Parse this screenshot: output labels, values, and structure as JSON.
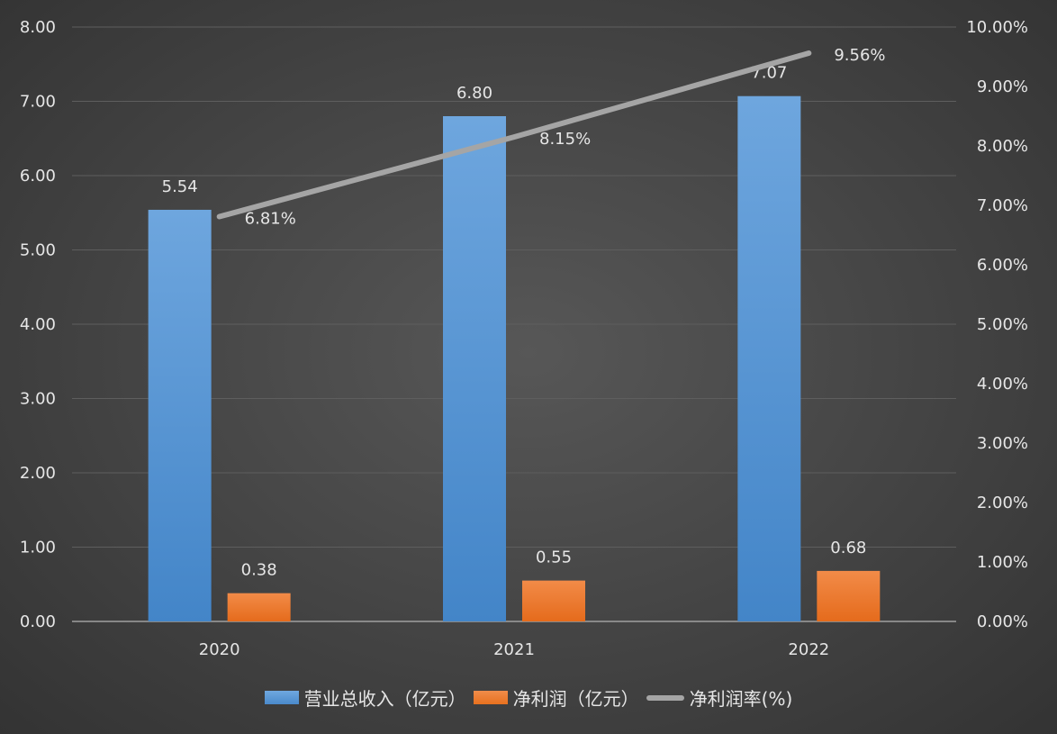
{
  "chart_data": {
    "type": "bar+line",
    "categories": [
      "2020",
      "2021",
      "2022"
    ],
    "series": [
      {
        "name": "营业总收入（亿元）",
        "type": "bar",
        "axis": "left",
        "values": [
          5.54,
          6.8,
          7.07
        ],
        "labels": [
          "5.54",
          "6.80",
          "7.07"
        ],
        "color": "#5b9bd5"
      },
      {
        "name": "净利润（亿元）",
        "type": "bar",
        "axis": "left",
        "values": [
          0.38,
          0.55,
          0.68
        ],
        "labels": [
          "0.38",
          "0.55",
          "0.68"
        ],
        "color": "#ed7d31"
      },
      {
        "name": "净利润率(%)",
        "type": "line",
        "axis": "right",
        "values": [
          6.81,
          8.15,
          9.56
        ],
        "labels": [
          "6.81%",
          "8.15%",
          "9.56%"
        ],
        "color": "#a5a5a5"
      }
    ],
    "left_axis": {
      "ylim": [
        0,
        8
      ],
      "ticks": [
        "0.00",
        "1.00",
        "2.00",
        "3.00",
        "4.00",
        "5.00",
        "6.00",
        "7.00",
        "8.00"
      ]
    },
    "right_axis": {
      "ylim": [
        0,
        10
      ],
      "ticks": [
        "0.00%",
        "1.00%",
        "2.00%",
        "3.00%",
        "4.00%",
        "5.00%",
        "6.00%",
        "7.00%",
        "8.00%",
        "9.00%",
        "10.00%"
      ]
    },
    "grid": true,
    "legend_position": "bottom"
  }
}
